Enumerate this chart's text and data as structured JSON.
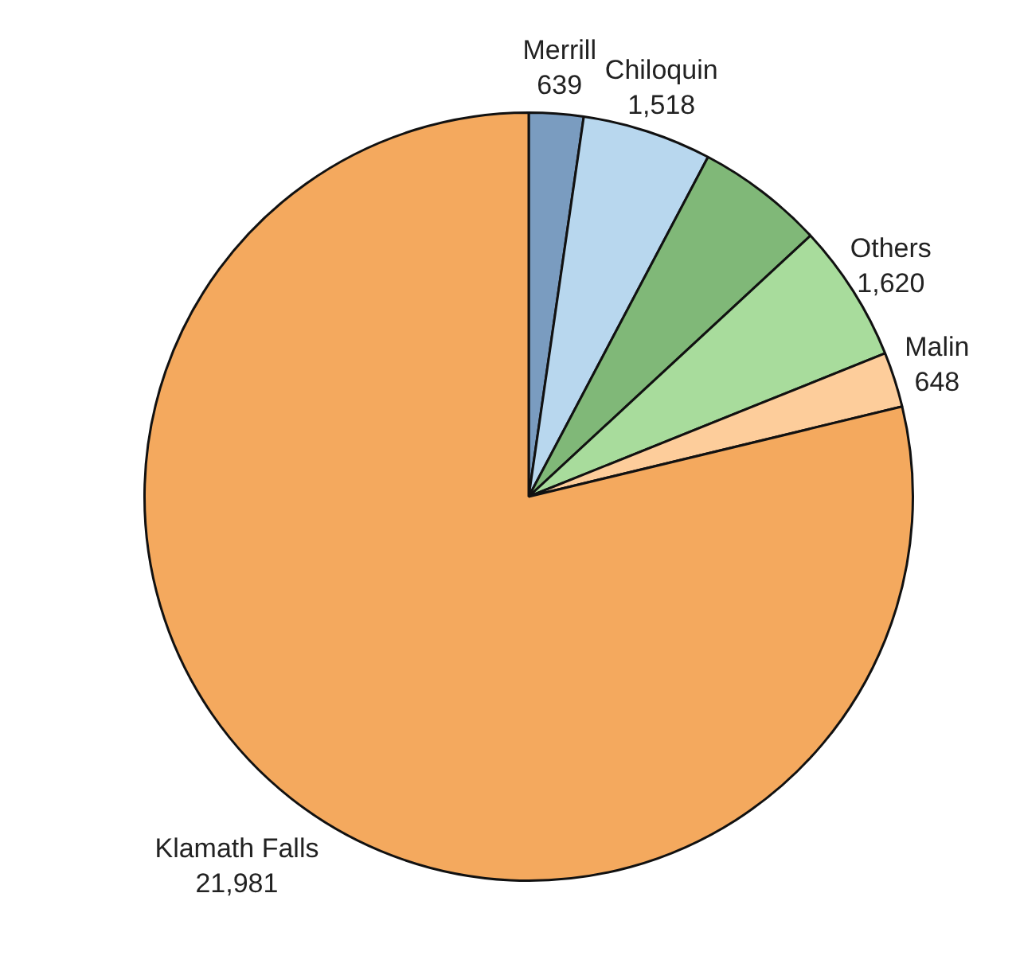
{
  "chart_data": {
    "type": "pie",
    "categories": [
      "Merrill",
      "Chiloquin",
      null,
      "Others",
      "Malin",
      "Klamath Falls"
    ],
    "values": [
      639,
      1518,
      1500,
      1620,
      648,
      21981
    ],
    "value_labels": [
      "639",
      "1,518",
      null,
      "1,620",
      "648",
      "21,981"
    ],
    "colors": [
      "#7a9cc0",
      "#b8d7ee",
      "#80b878",
      "#a8dc9c",
      "#fdcd9b",
      "#f4a95e"
    ]
  }
}
